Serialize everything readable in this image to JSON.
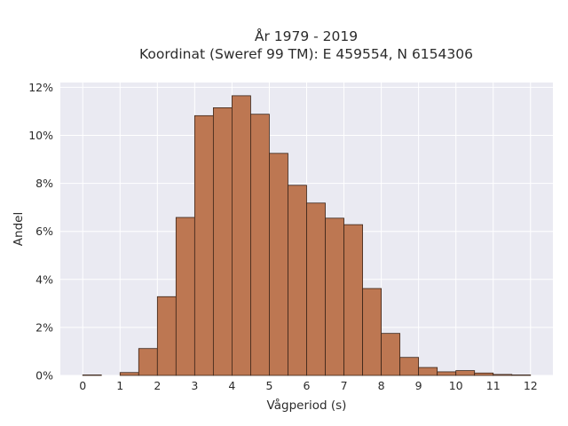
{
  "chart_data": {
    "type": "bar",
    "title": [
      "År 1979 - 2019",
      "Koordinat (Sweref 99 TM): E 459554, N 6154306"
    ],
    "xlabel": "Vågperiod (s)",
    "ylabel": "Andel",
    "xlim": [
      -0.6,
      12.6
    ],
    "ylim": [
      0,
      12.2
    ],
    "xticks": [
      0,
      1,
      2,
      3,
      4,
      5,
      6,
      7,
      8,
      9,
      10,
      11,
      12
    ],
    "yticks": [
      0,
      2,
      4,
      6,
      8,
      10,
      12
    ],
    "ytick_labels": [
      "0%",
      "2%",
      "4%",
      "6%",
      "8%",
      "10%",
      "12%"
    ],
    "grid": true,
    "bin_width": 0.5,
    "bins": [
      {
        "start": 0.0,
        "value": 0.02
      },
      {
        "start": 0.5,
        "value": 0.0
      },
      {
        "start": 1.0,
        "value": 0.12
      },
      {
        "start": 1.5,
        "value": 1.12
      },
      {
        "start": 2.0,
        "value": 3.28
      },
      {
        "start": 2.5,
        "value": 6.58
      },
      {
        "start": 3.0,
        "value": 10.82
      },
      {
        "start": 3.5,
        "value": 11.15
      },
      {
        "start": 4.0,
        "value": 11.65
      },
      {
        "start": 4.5,
        "value": 10.88
      },
      {
        "start": 5.0,
        "value": 9.25
      },
      {
        "start": 5.5,
        "value": 7.92
      },
      {
        "start": 6.0,
        "value": 7.18
      },
      {
        "start": 6.5,
        "value": 6.55
      },
      {
        "start": 7.0,
        "value": 6.28
      },
      {
        "start": 7.5,
        "value": 3.62
      },
      {
        "start": 8.0,
        "value": 1.75
      },
      {
        "start": 8.5,
        "value": 0.75
      },
      {
        "start": 9.0,
        "value": 0.33
      },
      {
        "start": 9.5,
        "value": 0.15
      },
      {
        "start": 10.0,
        "value": 0.2
      },
      {
        "start": 10.5,
        "value": 0.1
      },
      {
        "start": 11.0,
        "value": 0.04
      },
      {
        "start": 11.5,
        "value": 0.02
      }
    ],
    "colors": {
      "bar_fill": "#bd7752",
      "bar_edge": "#3a2418",
      "plot_background": "#eaeaf2",
      "grid": "#ffffff"
    }
  }
}
